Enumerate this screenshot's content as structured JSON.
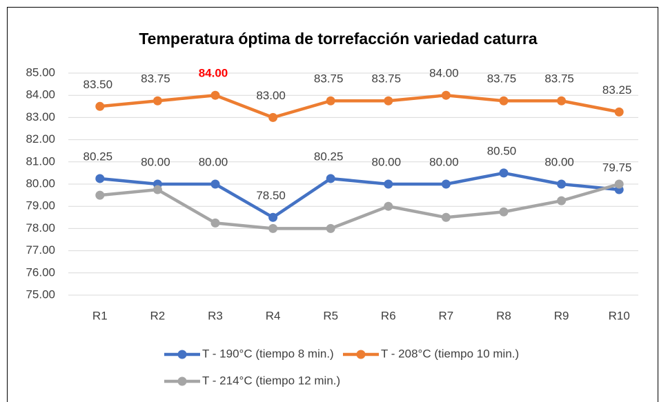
{
  "chart_data": {
    "type": "line",
    "title": "Temperatura óptima de torrefacción variedad caturra",
    "categories": [
      "R1",
      "R2",
      "R3",
      "R4",
      "R5",
      "R6",
      "R7",
      "R8",
      "R9",
      "R10"
    ],
    "series": [
      {
        "name": "T - 190°C (tiempo 8 min.)",
        "color": "#4472c4",
        "values": [
          80.25,
          80,
          80,
          78.5,
          80.25,
          80,
          80,
          80.5,
          80,
          79.75
        ],
        "value_labels": [
          "80.25",
          "80.00",
          "80.00",
          "78.50",
          "80.25",
          "80.00",
          "80.00",
          "80.50",
          "80.00",
          "79.75"
        ]
      },
      {
        "name": "T - 208°C (tiempo 10 min.)",
        "color": "#ed7d31",
        "values": [
          83.5,
          83.75,
          84,
          83,
          83.75,
          83.75,
          84,
          83.75,
          83.75,
          83.25
        ],
        "value_labels": [
          "83.50",
          "83.75",
          "84.00",
          "83.00",
          "83.75",
          "83.75",
          "84.00",
          "83.75",
          "83.75",
          "83.25"
        ],
        "label_highlight": {
          "index": 2,
          "color": "#ff0000"
        }
      },
      {
        "name": "T - 214°C (tiempo 12 min.)",
        "color": "#a5a5a5",
        "values": [
          79.5,
          79.75,
          78.25,
          78,
          78,
          79,
          78.5,
          78.75,
          79.25,
          80
        ]
      }
    ],
    "ylim": [
      75,
      85
    ],
    "yticks": [
      {
        "value": 75,
        "label": "75.00"
      },
      {
        "value": 76,
        "label": "76.00"
      },
      {
        "value": 77,
        "label": "77.00"
      },
      {
        "value": 78,
        "label": "78.00"
      },
      {
        "value": 79,
        "label": "79.00"
      },
      {
        "value": 80,
        "label": "80.00"
      },
      {
        "value": 81,
        "label": "81.00"
      },
      {
        "value": 82,
        "label": "82.00"
      },
      {
        "value": 83,
        "label": "83.00"
      },
      {
        "value": 84,
        "label": "84.00"
      },
      {
        "value": 85,
        "label": "85.00"
      }
    ],
    "grid": true,
    "legend": "bottom"
  }
}
